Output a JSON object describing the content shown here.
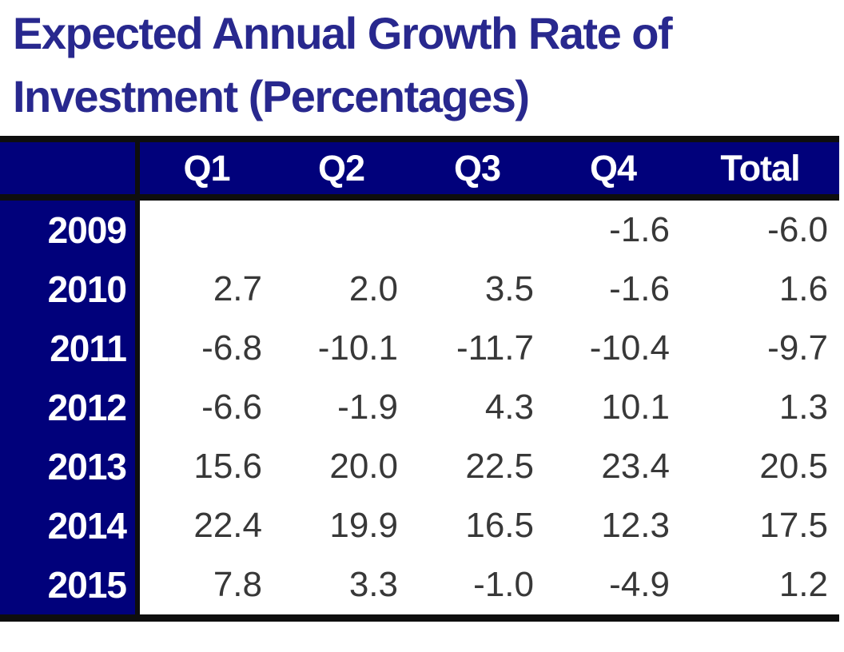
{
  "title": {
    "line1": "Expected Annual Growth Rate of",
    "line2": "Investment (Percentages)"
  },
  "colors": {
    "header_background": "#01017B",
    "header_text": "#FFFFFF",
    "title_text": "#28288E",
    "value_text": "#383838",
    "border": "#0E0E0E"
  },
  "chart_data": {
    "type": "table",
    "title": "Expected Annual Growth Rate of Investment (Percentages)",
    "columns": [
      "",
      "Q1",
      "Q2",
      "Q3",
      "Q4",
      "Total"
    ],
    "rows": [
      {
        "year": "2009",
        "values": [
          "",
          "",
          "",
          "-1.6",
          "-6.0"
        ]
      },
      {
        "year": "2010",
        "values": [
          "2.7",
          "2.0",
          "3.5",
          "-1.6",
          "1.6"
        ]
      },
      {
        "year": "2011",
        "values": [
          "-6.8",
          "-10.1",
          "-11.7",
          "-10.4",
          "-9.7"
        ]
      },
      {
        "year": "2012",
        "values": [
          "-6.6",
          "-1.9",
          "4.3",
          "10.1",
          "1.3"
        ]
      },
      {
        "year": "2013",
        "values": [
          "15.6",
          "20.0",
          "22.5",
          "23.4",
          "20.5"
        ]
      },
      {
        "year": "2014",
        "values": [
          "22.4",
          "19.9",
          "16.5",
          "12.3",
          "17.5"
        ]
      },
      {
        "year": "2015",
        "values": [
          "7.8",
          "3.3",
          "-1.0",
          "-4.9",
          "1.2"
        ]
      }
    ]
  }
}
